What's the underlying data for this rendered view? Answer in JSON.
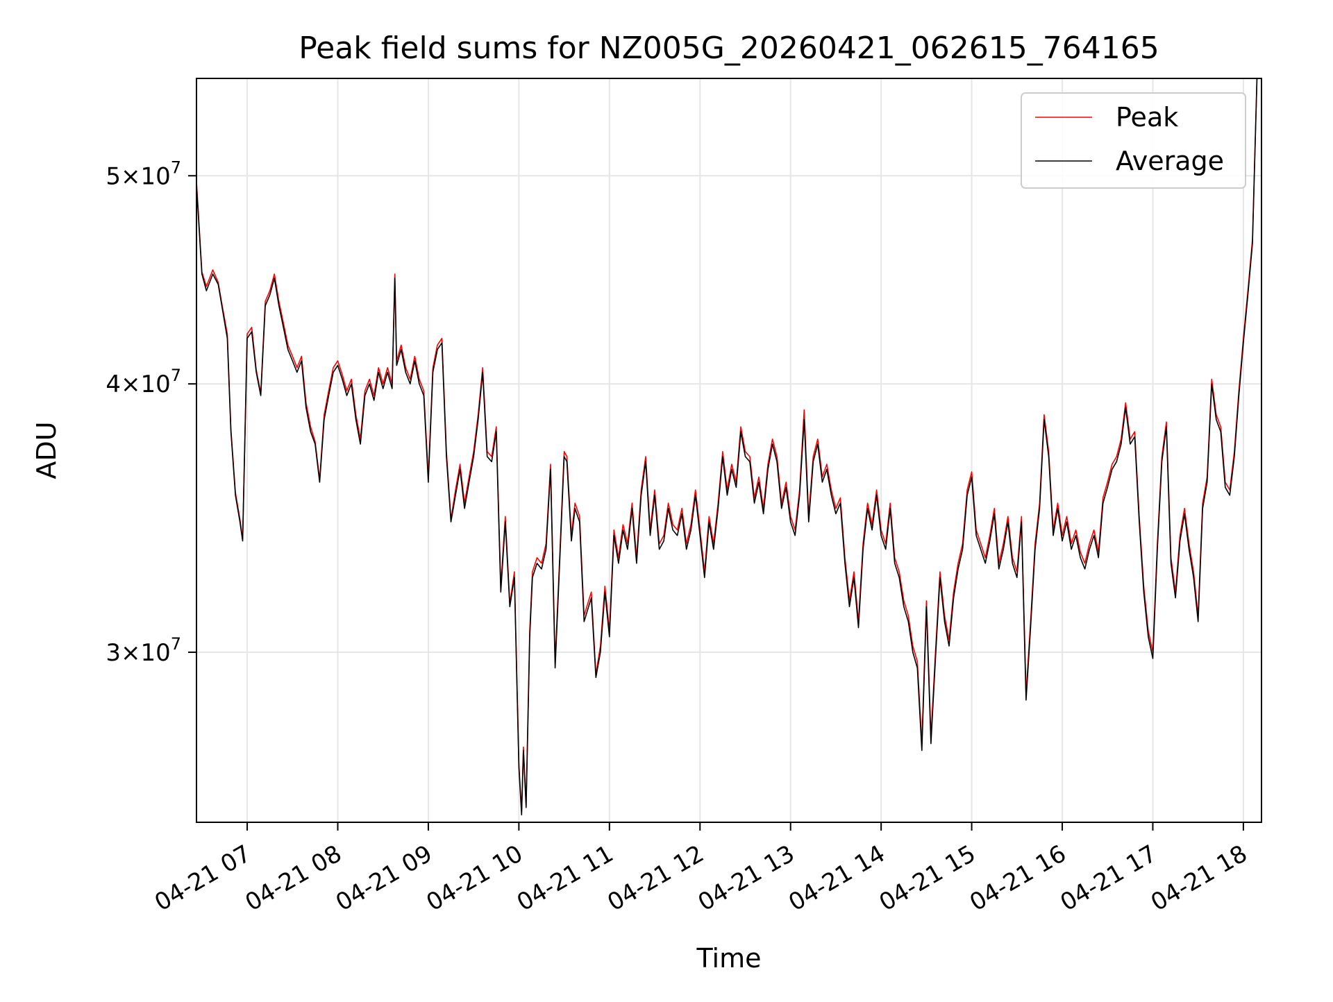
{
  "chart_data": {
    "type": "line",
    "title": "Peak field sums for NZ005G_20260421_062615_764165",
    "xlabel": "Time",
    "ylabel": "ADU",
    "yscale": "log",
    "grid": true,
    "legend_position": "top-right",
    "x_range_hours": [
      6.44,
      18.2
    ],
    "ylim": [
      25000000,
      55500000
    ],
    "x_ticks": [
      {
        "hour": 7,
        "label": "04-21 07"
      },
      {
        "hour": 8,
        "label": "04-21 08"
      },
      {
        "hour": 9,
        "label": "04-21 09"
      },
      {
        "hour": 10,
        "label": "04-21 10"
      },
      {
        "hour": 11,
        "label": "04-21 11"
      },
      {
        "hour": 12,
        "label": "04-21 12"
      },
      {
        "hour": 13,
        "label": "04-21 13"
      },
      {
        "hour": 14,
        "label": "04-21 14"
      },
      {
        "hour": 15,
        "label": "04-21 15"
      },
      {
        "hour": 16,
        "label": "04-21 16"
      },
      {
        "hour": 17,
        "label": "04-21 17"
      },
      {
        "hour": 18,
        "label": "04-21 18"
      }
    ],
    "y_ticks": [
      {
        "value": 30000000,
        "mant": "3",
        "exp": "7"
      },
      {
        "value": 40000000,
        "mant": "4",
        "exp": "7"
      },
      {
        "value": 50000000,
        "mant": "5",
        "exp": "7"
      }
    ],
    "series": [
      {
        "name": "Peak",
        "color": "#ff0000"
      },
      {
        "name": "Average",
        "color": "#000000"
      }
    ],
    "x": [
      6.44,
      6.5,
      6.55,
      6.62,
      6.68,
      6.72,
      6.78,
      6.82,
      6.87,
      6.92,
      6.95,
      7.0,
      7.05,
      7.1,
      7.15,
      7.2,
      7.25,
      7.3,
      7.35,
      7.4,
      7.45,
      7.5,
      7.55,
      7.6,
      7.65,
      7.7,
      7.75,
      7.8,
      7.85,
      7.9,
      7.95,
      8.0,
      8.05,
      8.1,
      8.15,
      8.2,
      8.25,
      8.3,
      8.35,
      8.4,
      8.45,
      8.5,
      8.55,
      8.6,
      8.63,
      8.65,
      8.7,
      8.75,
      8.8,
      8.85,
      8.9,
      8.95,
      9.0,
      9.05,
      9.1,
      9.15,
      9.2,
      9.25,
      9.3,
      9.35,
      9.4,
      9.45,
      9.5,
      9.55,
      9.6,
      9.65,
      9.7,
      9.75,
      9.8,
      9.85,
      9.9,
      9.95,
      10.0,
      10.03,
      10.05,
      10.08,
      10.12,
      10.15,
      10.2,
      10.25,
      10.3,
      10.35,
      10.4,
      10.45,
      10.5,
      10.53,
      10.58,
      10.62,
      10.67,
      10.72,
      10.77,
      10.8,
      10.85,
      10.9,
      10.95,
      11.0,
      11.05,
      11.1,
      11.15,
      11.2,
      11.25,
      11.3,
      11.35,
      11.4,
      11.45,
      11.5,
      11.55,
      11.6,
      11.65,
      11.7,
      11.75,
      11.8,
      11.85,
      11.9,
      11.95,
      12.0,
      12.05,
      12.1,
      12.15,
      12.2,
      12.25,
      12.3,
      12.35,
      12.4,
      12.45,
      12.5,
      12.55,
      12.6,
      12.65,
      12.7,
      12.75,
      12.8,
      12.85,
      12.9,
      12.95,
      13.0,
      13.05,
      13.1,
      13.15,
      13.2,
      13.25,
      13.3,
      13.35,
      13.4,
      13.45,
      13.5,
      13.55,
      13.6,
      13.65,
      13.7,
      13.75,
      13.8,
      13.85,
      13.9,
      13.95,
      14.0,
      14.05,
      14.1,
      14.15,
      14.2,
      14.25,
      14.3,
      14.35,
      14.4,
      14.45,
      14.5,
      14.55,
      14.6,
      14.65,
      14.7,
      14.75,
      14.8,
      14.85,
      14.9,
      14.95,
      15.0,
      15.05,
      15.1,
      15.15,
      15.2,
      15.25,
      15.3,
      15.35,
      15.4,
      15.45,
      15.5,
      15.55,
      15.6,
      15.65,
      15.7,
      15.75,
      15.8,
      15.85,
      15.9,
      15.95,
      16.0,
      16.05,
      16.1,
      16.15,
      16.2,
      16.25,
      16.3,
      16.35,
      16.4,
      16.45,
      16.5,
      16.55,
      16.6,
      16.65,
      16.7,
      16.75,
      16.8,
      16.85,
      16.9,
      16.95,
      17.0,
      17.05,
      17.1,
      17.15,
      17.2,
      17.25,
      17.3,
      17.35,
      17.4,
      17.45,
      17.5,
      17.55,
      17.6,
      17.65,
      17.7,
      17.75,
      17.8,
      17.85,
      17.9,
      17.95,
      18.0,
      18.05,
      18.1,
      18.15,
      18.2
    ],
    "average": [
      49500000,
      45000000,
      44200000,
      45000000,
      44500000,
      43500000,
      42000000,
      38000000,
      35500000,
      34500000,
      33800000,
      42000000,
      42300000,
      40500000,
      39500000,
      43500000,
      44000000,
      44800000,
      43500000,
      42500000,
      41500000,
      41000000,
      40500000,
      41000000,
      39000000,
      38000000,
      37500000,
      36000000,
      38500000,
      39500000,
      40500000,
      40800000,
      40200000,
      39500000,
      40000000,
      38500000,
      37500000,
      39500000,
      40000000,
      39300000,
      40500000,
      39800000,
      40500000,
      39800000,
      44800000,
      40800000,
      41500000,
      40500000,
      40000000,
      41000000,
      40000000,
      39500000,
      36000000,
      40500000,
      41500000,
      41800000,
      37000000,
      34500000,
      35500000,
      36500000,
      35000000,
      36000000,
      37000000,
      38500000,
      40500000,
      37000000,
      36800000,
      38000000,
      32000000,
      34500000,
      31500000,
      32500000,
      26500000,
      25200000,
      27000000,
      25400000,
      30500000,
      32500000,
      33000000,
      32800000,
      33500000,
      36500000,
      29500000,
      33000000,
      37000000,
      36800000,
      33800000,
      35000000,
      34500000,
      31000000,
      31500000,
      31800000,
      29200000,
      30000000,
      32000000,
      30500000,
      34000000,
      33000000,
      34200000,
      33500000,
      35000000,
      33000000,
      35500000,
      36800000,
      34000000,
      35500000,
      33500000,
      33800000,
      35000000,
      34200000,
      34000000,
      34800000,
      33500000,
      34200000,
      35500000,
      34000000,
      32500000,
      34500000,
      33500000,
      35000000,
      37000000,
      35500000,
      36500000,
      35800000,
      38000000,
      37000000,
      36800000,
      35200000,
      36000000,
      34800000,
      36500000,
      37500000,
      36800000,
      35000000,
      35800000,
      34500000,
      34000000,
      35500000,
      38500000,
      34500000,
      36800000,
      37500000,
      36000000,
      36500000,
      35500000,
      34800000,
      35200000,
      33000000,
      31500000,
      32500000,
      30800000,
      33500000,
      35000000,
      34200000,
      35500000,
      34000000,
      33500000,
      35000000,
      33000000,
      32500000,
      31500000,
      31000000,
      30000000,
      29500000,
      27000000,
      31500000,
      27200000,
      29800000,
      32500000,
      31000000,
      30200000,
      31800000,
      32800000,
      33500000,
      35500000,
      36200000,
      34000000,
      33500000,
      33000000,
      33800000,
      34800000,
      32800000,
      33500000,
      34500000,
      33000000,
      32500000,
      34500000,
      28500000,
      30800000,
      33500000,
      35000000,
      38500000,
      37000000,
      34000000,
      35000000,
      33800000,
      34500000,
      33500000,
      34000000,
      33200000,
      32800000,
      33500000,
      34000000,
      33200000,
      35200000,
      35800000,
      36500000,
      36800000,
      37500000,
      39000000,
      37500000,
      37800000,
      34500000,
      32000000,
      30500000,
      29800000,
      33500000,
      36800000,
      38200000,
      33000000,
      31800000,
      33800000,
      34800000,
      33500000,
      32500000,
      31000000,
      35000000,
      36000000,
      40000000,
      38500000,
      38000000,
      35800000,
      35500000,
      37000000,
      39500000,
      41800000,
      44000000,
      46500000,
      55500000
    ],
    "peak": [
      49700000,
      45100000,
      44400000,
      45200000,
      44600000,
      43600000,
      42200000,
      38100000,
      35600000,
      34600000,
      33900000,
      42200000,
      42500000,
      40600000,
      39600000,
      43700000,
      44200000,
      45000000,
      43700000,
      42700000,
      41700000,
      41200000,
      40700000,
      41200000,
      39200000,
      38200000,
      37600000,
      36100000,
      38700000,
      39700000,
      40700000,
      41000000,
      40400000,
      39700000,
      40200000,
      38700000,
      37700000,
      39700000,
      40200000,
      39500000,
      40700000,
      40000000,
      40700000,
      40000000,
      45000000,
      41000000,
      41700000,
      40700000,
      40200000,
      41200000,
      40200000,
      39700000,
      36200000,
      40700000,
      41700000,
      42000000,
      37200000,
      34600000,
      35700000,
      36700000,
      35200000,
      36200000,
      37200000,
      38700000,
      40700000,
      37200000,
      37000000,
      38200000,
      32200000,
      34700000,
      31600000,
      32700000,
      26600000,
      25300000,
      27100000,
      25500000,
      30700000,
      32700000,
      33200000,
      33000000,
      33700000,
      36700000,
      29700000,
      33200000,
      37200000,
      37000000,
      34000000,
      35200000,
      34700000,
      31200000,
      31700000,
      32000000,
      29300000,
      30200000,
      32200000,
      30700000,
      34200000,
      33200000,
      34400000,
      33700000,
      35200000,
      33200000,
      35700000,
      37000000,
      34200000,
      35700000,
      33700000,
      34000000,
      35200000,
      34400000,
      34200000,
      35000000,
      33700000,
      34400000,
      35700000,
      34200000,
      32700000,
      34700000,
      33700000,
      35200000,
      37200000,
      35700000,
      36700000,
      36000000,
      38200000,
      37200000,
      37000000,
      35400000,
      36200000,
      35000000,
      36700000,
      37700000,
      37000000,
      35200000,
      36000000,
      34700000,
      34200000,
      35700000,
      38900000,
      34700000,
      37000000,
      37700000,
      36200000,
      36700000,
      35700000,
      35000000,
      35400000,
      33200000,
      31700000,
      32700000,
      31000000,
      33700000,
      35200000,
      34400000,
      35700000,
      34200000,
      33700000,
      35200000,
      33200000,
      32700000,
      31700000,
      31200000,
      30200000,
      29700000,
      27200000,
      31700000,
      27400000,
      30000000,
      32700000,
      31200000,
      30400000,
      32000000,
      33000000,
      33700000,
      35700000,
      36400000,
      34200000,
      33700000,
      33200000,
      34000000,
      35000000,
      33000000,
      33700000,
      34700000,
      33200000,
      32700000,
      34700000,
      28700000,
      31000000,
      33700000,
      35200000,
      38700000,
      37200000,
      34200000,
      35200000,
      34000000,
      34700000,
      33700000,
      34200000,
      33400000,
      33000000,
      33700000,
      34200000,
      33400000,
      35400000,
      36000000,
      36700000,
      37000000,
      37700000,
      39200000,
      37700000,
      38000000,
      34700000,
      32200000,
      30700000,
      30000000,
      33700000,
      37000000,
      38400000,
      33200000,
      32000000,
      34000000,
      35000000,
      33700000,
      32700000,
      31200000,
      35200000,
      36200000,
      40200000,
      38700000,
      38200000,
      36000000,
      35700000,
      37200000,
      39700000,
      42000000,
      44200000,
      46700000,
      55600000
    ]
  }
}
